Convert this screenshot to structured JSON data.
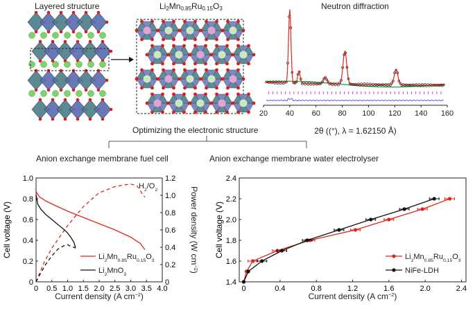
{
  "top": {
    "layered_title": "Layered structure",
    "compound_title": {
      "parts": [
        {
          "t": "Li",
          "sub": false
        },
        {
          "t": "2",
          "sub": true
        },
        {
          "t": "Mn",
          "sub": false
        },
        {
          "t": "0.85",
          "sub": true
        },
        {
          "t": "Ru",
          "sub": false
        },
        {
          "t": "0.15",
          "sub": true
        },
        {
          "t": "O",
          "sub": false
        },
        {
          "t": "3",
          "sub": true
        }
      ]
    },
    "neutron_title": "Neutron diffraction",
    "optimizing_label": "Optimizing the electronic structure",
    "fuel_cell_label": "Anion exchange membrane fuel cell",
    "electrolyser_label": "Anion exchange membrane water electrolyser"
  },
  "chart_data": [
    {
      "type": "line",
      "panel": "neutron-diffraction",
      "xlabel": "2θ ((°), λ = 1.62150 Å)",
      "xlim": [
        20,
        160
      ],
      "xticks": [
        20,
        40,
        60,
        80,
        100,
        120,
        140,
        160
      ],
      "peaks": [
        {
          "x": 40,
          "height": 1.0
        },
        {
          "x": 47,
          "height": 0.17
        },
        {
          "x": 67,
          "height": 0.09
        },
        {
          "x": 82,
          "height": 0.45
        },
        {
          "x": 121,
          "height": 0.21
        }
      ],
      "series": [
        {
          "name": "observed",
          "color": "#111111"
        },
        {
          "name": "calculated",
          "color": "#e0251b"
        },
        {
          "name": "background",
          "color": "#2fa84f"
        },
        {
          "name": "difference",
          "color": "#3b3bd6"
        }
      ],
      "tick_marks_color": "#d63fd6"
    },
    {
      "type": "line",
      "panel": "fuel-cell",
      "xlabel": "Current density (A cm",
      "xlabel_sup": "−2",
      "xlabel_end": ")",
      "ylabel_left": "Cell voltage (V)",
      "ylabel_right": "Power density (W cm",
      "ylabel_right_sup": "−2",
      "ylabel_right_end": ")",
      "xlim": [
        0,
        4.0
      ],
      "xticks": [
        "0",
        "0.5",
        "1.0",
        "1.5",
        "2.0",
        "2.5",
        "3.0",
        "3.5",
        "4.0"
      ],
      "ylim_left": [
        0,
        1.0
      ],
      "yticks_left": [
        "0",
        "0.2",
        "0.4",
        "0.6",
        "0.8",
        "1.0"
      ],
      "ylim_right": [
        0,
        1.2
      ],
      "yticks_right": [
        "0",
        "0.2",
        "0.4",
        "0.6",
        "0.8",
        "1.0",
        "1.2"
      ],
      "annotation": "H",
      "annotation_sub": "2",
      "annotation_end": "/O",
      "annotation_sub2": "2",
      "series": [
        {
          "label_parts": [
            {
              "t": "Li",
              "sub": false
            },
            {
              "t": "2",
              "sub": true
            },
            {
              "t": "Mn",
              "sub": false
            },
            {
              "t": "0.85",
              "sub": true
            },
            {
              "t": "Ru",
              "sub": false
            },
            {
              "t": "0.15",
              "sub": true
            },
            {
              "t": "O",
              "sub": false
            },
            {
              "t": "3",
              "sub": true
            }
          ],
          "color": "#e0251b",
          "voltage": [
            [
              0,
              0.87
            ],
            [
              0.1,
              0.82
            ],
            [
              0.3,
              0.78
            ],
            [
              0.5,
              0.75
            ],
            [
              1.0,
              0.68
            ],
            [
              1.5,
              0.62
            ],
            [
              2.0,
              0.56
            ],
            [
              2.5,
              0.5
            ],
            [
              3.0,
              0.43
            ],
            [
              3.3,
              0.37
            ],
            [
              3.45,
              0.31
            ]
          ],
          "power": [
            [
              0,
              0
            ],
            [
              0.25,
              0.22
            ],
            [
              0.5,
              0.39
            ],
            [
              1.0,
              0.65
            ],
            [
              1.5,
              0.87
            ],
            [
              2.0,
              1.03
            ],
            [
              2.5,
              1.1
            ],
            [
              2.8,
              1.12
            ],
            [
              3.0,
              1.13
            ],
            [
              3.2,
              1.11
            ],
            [
              3.4,
              1.0
            ],
            [
              3.45,
              0.98
            ]
          ]
        },
        {
          "label_parts": [
            {
              "t": "Li",
              "sub": false
            },
            {
              "t": "2",
              "sub": true
            },
            {
              "t": "MnO",
              "sub": false
            },
            {
              "t": "3",
              "sub": true
            }
          ],
          "color": "#111111",
          "voltage": [
            [
              0,
              0.84
            ],
            [
              0.05,
              0.75
            ],
            [
              0.15,
              0.7
            ],
            [
              0.3,
              0.65
            ],
            [
              0.5,
              0.6
            ],
            [
              0.7,
              0.55
            ],
            [
              0.9,
              0.5
            ],
            [
              1.0,
              0.47
            ],
            [
              1.1,
              0.43
            ],
            [
              1.2,
              0.38
            ],
            [
              1.25,
              0.33
            ]
          ],
          "power": [
            [
              0,
              0
            ],
            [
              0.1,
              0.07
            ],
            [
              0.3,
              0.2
            ],
            [
              0.5,
              0.3
            ],
            [
              0.7,
              0.38
            ],
            [
              0.9,
              0.42
            ],
            [
              1.0,
              0.43
            ],
            [
              1.1,
              0.41
            ],
            [
              1.2,
              0.4
            ],
            [
              1.25,
              0.39
            ]
          ]
        }
      ]
    },
    {
      "type": "line",
      "panel": "electrolyser",
      "xlabel": "Current density (A cm",
      "xlabel_sup": "−2",
      "xlabel_end": ")",
      "ylabel": "Cell voltage (V)",
      "xlim": [
        -0.05,
        2.45
      ],
      "xticks": [
        "0",
        "0.4",
        "0.8",
        "1.2",
        "1.6",
        "2.0",
        "2.4"
      ],
      "ylim": [
        1.4,
        2.4
      ],
      "yticks": [
        "1.4",
        "1.6",
        "1.8",
        "2.0",
        "2.2",
        "2.4"
      ],
      "series": [
        {
          "label_parts": [
            {
              "t": "Li",
              "sub": false
            },
            {
              "t": "2",
              "sub": true
            },
            {
              "t": "Mn",
              "sub": false
            },
            {
              "t": "0.85",
              "sub": true
            },
            {
              "t": "Ru",
              "sub": false
            },
            {
              "t": "0.15",
              "sub": true
            },
            {
              "t": "O",
              "sub": false
            },
            {
              "t": "3",
              "sub": true
            }
          ],
          "color": "#e0251b",
          "x": [
            0.0,
            0.03,
            0.1,
            0.37,
            0.73,
            1.23,
            1.6,
            1.97,
            2.27
          ],
          "y": [
            1.4,
            1.5,
            1.6,
            1.7,
            1.8,
            1.9,
            2.0,
            2.1,
            2.2
          ]
        },
        {
          "label_parts": [
            {
              "t": "NiFe-LDH",
              "sub": false
            }
          ],
          "color": "#111111",
          "x": [
            0.0,
            0.05,
            0.2,
            0.42,
            0.7,
            1.05,
            1.4,
            1.77,
            2.1
          ],
          "y": [
            1.4,
            1.5,
            1.6,
            1.7,
            1.8,
            1.9,
            2.0,
            2.1,
            2.2
          ]
        }
      ]
    }
  ]
}
